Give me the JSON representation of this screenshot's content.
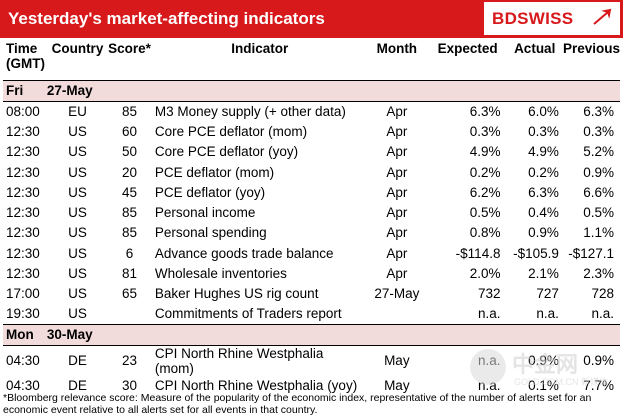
{
  "header": {
    "title": "Yesterday's market-affecting indicators",
    "brand": "BDSWISS",
    "accent": "#d7191c"
  },
  "columns": {
    "time": "Time (GMT)",
    "country": "Country",
    "score": "Score*",
    "indicator": "Indicator",
    "month": "Month",
    "expected": "Expected",
    "actual": "Actual",
    "previous": "Previous"
  },
  "days": [
    {
      "day": "Fri",
      "date": "27-May",
      "rows": [
        {
          "time": "08:00",
          "country": "EU",
          "score": "85",
          "indicator": "M3 Money supply (+ other data)",
          "month": "Apr",
          "expected": "6.3%",
          "actual": "6.0%",
          "previous": "6.3%"
        },
        {
          "time": "12:30",
          "country": "US",
          "score": "60",
          "indicator": "Core PCE deflator (mom)",
          "month": "Apr",
          "expected": "0.3%",
          "actual": "0.3%",
          "previous": "0.3%"
        },
        {
          "time": "12:30",
          "country": "US",
          "score": "50",
          "indicator": "Core PCE deflator (yoy)",
          "month": "Apr",
          "expected": "4.9%",
          "actual": "4.9%",
          "previous": "5.2%"
        },
        {
          "time": "12:30",
          "country": "US",
          "score": "20",
          "indicator": "PCE deflator (mom)",
          "month": "Apr",
          "expected": "0.2%",
          "actual": "0.2%",
          "previous": "0.9%"
        },
        {
          "time": "12:30",
          "country": "US",
          "score": "45",
          "indicator": "PCE deflator (yoy)",
          "month": "Apr",
          "expected": "6.2%",
          "actual": "6.3%",
          "previous": "6.6%"
        },
        {
          "time": "12:30",
          "country": "US",
          "score": "85",
          "indicator": "Personal income",
          "month": "Apr",
          "expected": "0.5%",
          "actual": "0.4%",
          "previous": "0.5%"
        },
        {
          "time": "12:30",
          "country": "US",
          "score": "85",
          "indicator": "Personal spending",
          "month": "Apr",
          "expected": "0.8%",
          "actual": "0.9%",
          "previous": "1.1%"
        },
        {
          "time": "12:30",
          "country": "US",
          "score": "6",
          "indicator": "Advance goods trade balance",
          "month": "Apr",
          "expected": "-$114.8",
          "actual": "-$105.9",
          "previous": "-$127.1"
        },
        {
          "time": "12:30",
          "country": "US",
          "score": "81",
          "indicator": "Wholesale inventories",
          "month": "Apr",
          "expected": "2.0%",
          "actual": "2.1%",
          "previous": "2.3%"
        },
        {
          "time": "17:00",
          "country": "US",
          "score": "65",
          "indicator": "Baker Hughes US rig count",
          "month": "27-May",
          "expected": "732",
          "actual": "727",
          "previous": "728"
        },
        {
          "time": "19:30",
          "country": "US",
          "score": "",
          "indicator": "Commitments of Traders  report",
          "month": "",
          "expected": "n.a.",
          "actual": "n.a.",
          "previous": "n.a."
        }
      ]
    },
    {
      "day": "Mon",
      "date": "30-May",
      "rows": [
        {
          "time": "04:30",
          "country": "DE",
          "score": "23",
          "indicator": "CPI North Rhine Westphalia (mom)",
          "month": "May",
          "expected": "n.a.",
          "actual": "0.9%",
          "previous": "0.9%"
        },
        {
          "time": "04:30",
          "country": "DE",
          "score": "30",
          "indicator": "CPI North Rhine Westphalia (yoy)",
          "month": "May",
          "expected": "n.a.",
          "actual": "0.1%",
          "previous": "7.7%"
        }
      ]
    }
  ],
  "footnote": "*Bloomberg relevance score: Measure of the popularity of the economic index, representative of the number of alerts set for an economic event relative to all alerts set for all events in that country.",
  "watermark": {
    "text": "中金网",
    "sub": "GOLD.COM.CN  新媒体"
  }
}
